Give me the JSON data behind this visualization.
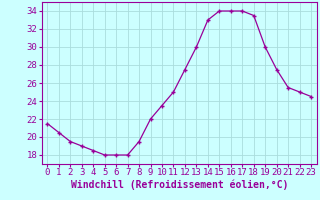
{
  "x": [
    0,
    1,
    2,
    3,
    4,
    5,
    6,
    7,
    8,
    9,
    10,
    11,
    12,
    13,
    14,
    15,
    16,
    17,
    18,
    19,
    20,
    21,
    22,
    23
  ],
  "y": [
    21.5,
    20.5,
    19.5,
    19.0,
    18.5,
    18.0,
    18.0,
    18.0,
    19.5,
    22.0,
    23.5,
    25.0,
    27.5,
    30.0,
    33.0,
    34.0,
    34.0,
    34.0,
    33.5,
    30.0,
    27.5,
    25.5,
    25.0,
    24.5
  ],
  "line_color": "#990099",
  "marker": "+",
  "marker_color": "#990099",
  "bg_color": "#ccffff",
  "grid_color": "#aadddd",
  "xlabel": "Windchill (Refroidissement éolien,°C)",
  "xlabel_color": "#990099",
  "tick_color": "#990099",
  "ylim": [
    17,
    35
  ],
  "yticks": [
    18,
    20,
    22,
    24,
    26,
    28,
    30,
    32,
    34
  ],
  "xticks": [
    0,
    1,
    2,
    3,
    4,
    5,
    6,
    7,
    8,
    9,
    10,
    11,
    12,
    13,
    14,
    15,
    16,
    17,
    18,
    19,
    20,
    21,
    22,
    23
  ],
  "xlim": [
    -0.5,
    23.5
  ],
  "spine_color": "#990099",
  "tick_fontsize": 6.5,
  "xlabel_fontsize": 7.0
}
